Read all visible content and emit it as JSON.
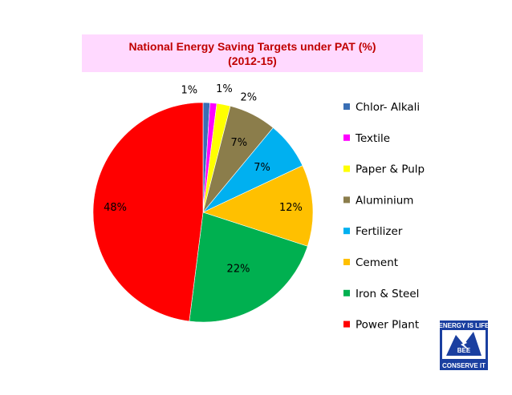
{
  "header": {
    "title_line1": "National Energy Saving Targets under PAT (%)",
    "title_line2": "(2012-15)"
  },
  "chart_data": {
    "type": "pie",
    "title": "National Energy Saving Targets under PAT (%) (2012-15)",
    "categories": [
      "Chlor- Alkali",
      "Textile",
      "Paper & Pulp",
      "Aluminium",
      "Fertilizer",
      "Cement",
      "Iron & Steel",
      "Power Plant"
    ],
    "values": [
      1,
      1,
      2,
      7,
      7,
      12,
      22,
      48
    ],
    "labels": [
      "1%",
      "1%",
      "2%",
      "7%",
      "7%",
      "12%",
      "22%",
      "48%"
    ],
    "colors": [
      "#3a6fb5",
      "#ff00ff",
      "#ffff00",
      "#8b7d4b",
      "#00b0f0",
      "#ffc000",
      "#00b050",
      "#ff0000"
    ],
    "legend_position": "right"
  },
  "logo": {
    "top_text": "ENERGY IS LIFE",
    "middle_text": "BEE",
    "bottom_text": "CONSERVE IT"
  }
}
